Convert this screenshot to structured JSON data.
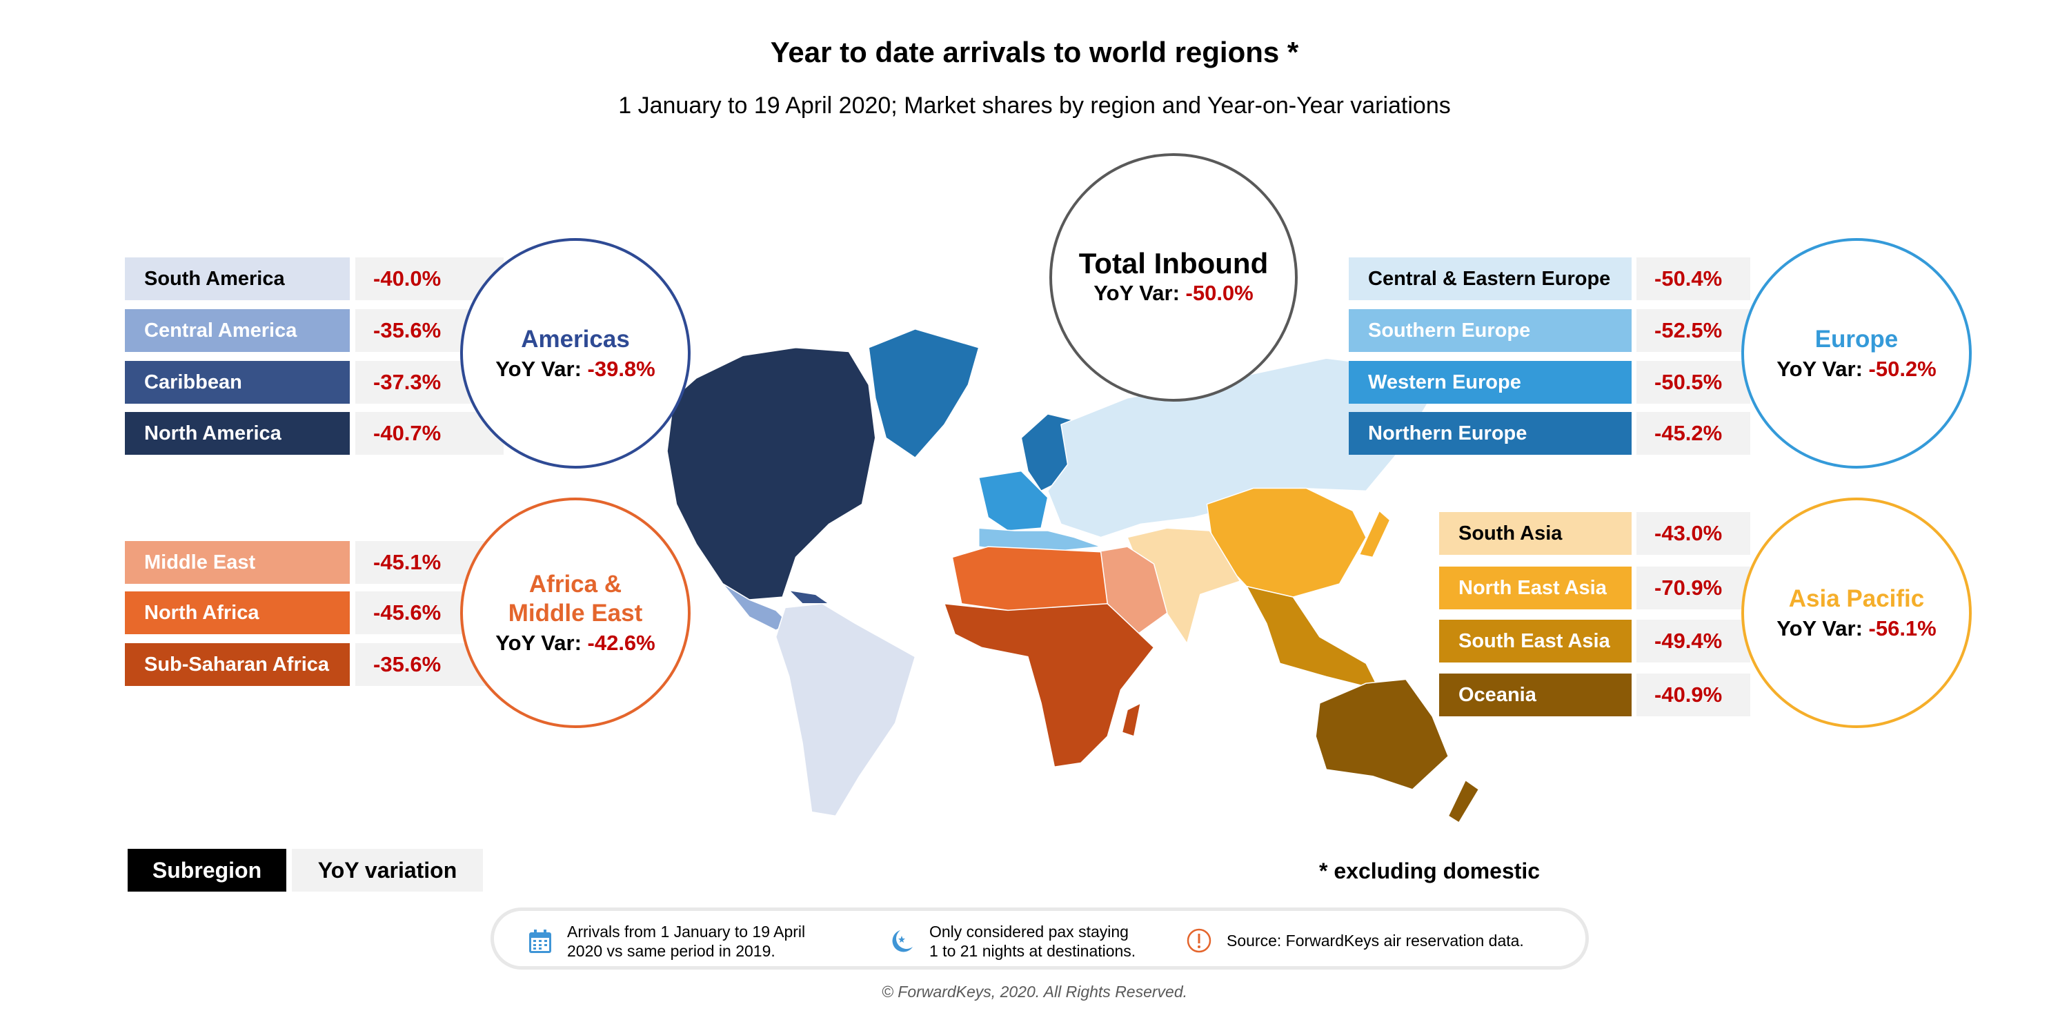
{
  "header": {
    "title": "Year to date arrivals to world regions *",
    "subtitle": "1 January to 19 April 2020; Market shares by region and Year-on-Year variations"
  },
  "total": {
    "name": "Total Inbound",
    "yoy_label": "YoY Var:",
    "yoy_value": "-50.0%",
    "color": "#595959"
  },
  "regions": {
    "americas": {
      "name": "Americas",
      "yoy_label": "YoY Var:",
      "yoy_value": "-39.8%",
      "color": "#2e4a94",
      "subregions": [
        {
          "label": "South America",
          "value": "-40.0%",
          "color": "#dbe2f0",
          "text_color": "#000000"
        },
        {
          "label": "Central America",
          "value": "-35.6%",
          "color": "#8ea9d6",
          "text_color": "#ffffff"
        },
        {
          "label": "Caribbean",
          "value": "-37.3%",
          "color": "#375288",
          "text_color": "#ffffff"
        },
        {
          "label": "North America",
          "value": "-40.7%",
          "color": "#22365a",
          "text_color": "#ffffff"
        }
      ]
    },
    "africa_me": {
      "name_line1": "Africa &",
      "name_line2": "Middle East",
      "yoy_label": "YoY Var:",
      "yoy_value": "-42.6%",
      "color": "#e4652c",
      "subregions": [
        {
          "label": "Middle East",
          "value": "-45.1%",
          "color": "#f0a07d",
          "text_color": "#ffffff"
        },
        {
          "label": "North Africa",
          "value": "-45.6%",
          "color": "#e8692b",
          "text_color": "#ffffff"
        },
        {
          "label": "Sub-Saharan Africa",
          "value": "-35.6%",
          "color": "#c04a16",
          "text_color": "#ffffff"
        }
      ]
    },
    "europe": {
      "name": "Europe",
      "yoy_label": "YoY Var:",
      "yoy_value": "-50.2%",
      "color": "#349ad9",
      "subregions": [
        {
          "label": "Central & Eastern Europe",
          "value": "-50.4%",
          "color": "#d6e9f6",
          "text_color": "#000000"
        },
        {
          "label": "Southern Europe",
          "value": "-52.5%",
          "color": "#85c3ea",
          "text_color": "#ffffff"
        },
        {
          "label": "Western Europe",
          "value": "-50.5%",
          "color": "#349ad9",
          "text_color": "#ffffff"
        },
        {
          "label": "Northern Europe",
          "value": "-45.2%",
          "color": "#2173b0",
          "text_color": "#ffffff"
        }
      ]
    },
    "asia_pacific": {
      "name": "Asia Pacific",
      "yoy_label": "YoY Var:",
      "yoy_value": "-56.1%",
      "color": "#f5ae2a",
      "subregions": [
        {
          "label": "South Asia",
          "value": "-43.0%",
          "color": "#fbdca8",
          "text_color": "#000000"
        },
        {
          "label": "North East Asia",
          "value": "-70.9%",
          "color": "#f5ae2a",
          "text_color": "#ffffff"
        },
        {
          "label": "South East Asia",
          "value": "-49.4%",
          "color": "#c98a0d",
          "text_color": "#ffffff"
        },
        {
          "label": "Oceania",
          "value": "-40.9%",
          "color": "#8b5a06",
          "text_color": "#ffffff"
        }
      ]
    }
  },
  "legend": {
    "subregion": "Subregion",
    "yoy": "YoY variation"
  },
  "note": "* excluding domestic",
  "footer": {
    "items": [
      {
        "icon": "calendar-icon",
        "line1": "Arrivals from 1 January to 19 April",
        "line2": "2020 vs same period in 2019."
      },
      {
        "icon": "moon-star-icon",
        "line1": "Only considered pax staying",
        "line2": "1 to 21 nights at destinations."
      },
      {
        "icon": "exclamation-circle-icon",
        "line1": "Source: ForwardKeys air reservation data.",
        "line2": ""
      }
    ],
    "copyright": "© ForwardKeys, 2020. All Rights Reserved."
  }
}
